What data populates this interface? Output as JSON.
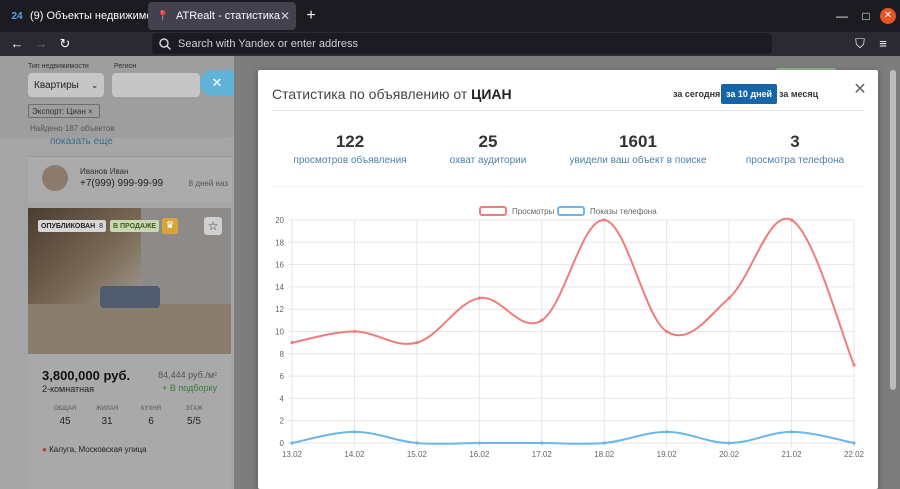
{
  "browser": {
    "tabs": [
      {
        "label": "(9) Объекты недвижимо",
        "favicon": "24"
      },
      {
        "label": "ATRealt - статистика",
        "favicon": "pin"
      }
    ],
    "address_placeholder": "Search with Yandex or enter address"
  },
  "filters": {
    "type_label": "Тип недвижимости",
    "type_value": "Квартиры",
    "region_label": "Регион",
    "chip": "Экспорт: Циан ×",
    "found": "Найдено 187 объектов",
    "show_more": "показать еще"
  },
  "agent": {
    "name": "Иванов Иван",
    "phone": "+7(999) 999-99-99",
    "ago": "8 дней наз"
  },
  "listing": {
    "badge_published": "ОПУБЛИКОВАН",
    "badge_published_count": "8",
    "badge_sale": "В ПРОДАЖЕ",
    "price": "3,800,000 руб.",
    "price_m2": "84,444 руб./м²",
    "rooms": "2-комнатная",
    "add_to_selection": "+ В подборку",
    "specs": [
      {
        "k": "ОБЩАЯ",
        "v": "45"
      },
      {
        "k": "ЖИЛАЯ",
        "v": "31"
      },
      {
        "k": "КУХНЯ",
        "v": "6"
      },
      {
        "k": "ЭТАЖ",
        "v": "5/5"
      }
    ],
    "address": "Калуга, Московская улица"
  },
  "modal": {
    "title_prefix": "Статистика по объявлению от",
    "title_source": "ЦИАН",
    "periods": [
      "за сегодня",
      "за 10 дней",
      "за месяц"
    ],
    "active_period": "за 10 дней",
    "stats": [
      {
        "value": "122",
        "label": "просмотров объявления"
      },
      {
        "value": "25",
        "label": "охват аудитории"
      },
      {
        "value": "1601",
        "label": "увидели ваш объект в поиске"
      },
      {
        "value": "3",
        "label": "просмотра телефона"
      }
    ]
  },
  "chart_data": {
    "type": "line",
    "categories": [
      "13.02",
      "14.02",
      "15.02",
      "16.02",
      "17.02",
      "18.02",
      "19.02",
      "20.02",
      "21.02",
      "22.02"
    ],
    "series": [
      {
        "name": "Просмотры",
        "color": "#f07c7c",
        "values": [
          9,
          10,
          9,
          13,
          11,
          20,
          10,
          13,
          20,
          7
        ]
      },
      {
        "name": "Показы телефона",
        "color": "#6cb6e8",
        "values": [
          0,
          1,
          0,
          0,
          0,
          0,
          1,
          0,
          1,
          0
        ]
      }
    ],
    "ylim": [
      0,
      20
    ],
    "yticks": [
      0,
      2,
      4,
      6,
      8,
      10,
      12,
      14,
      16,
      18,
      20
    ],
    "grid": true,
    "legend": "top-center"
  }
}
